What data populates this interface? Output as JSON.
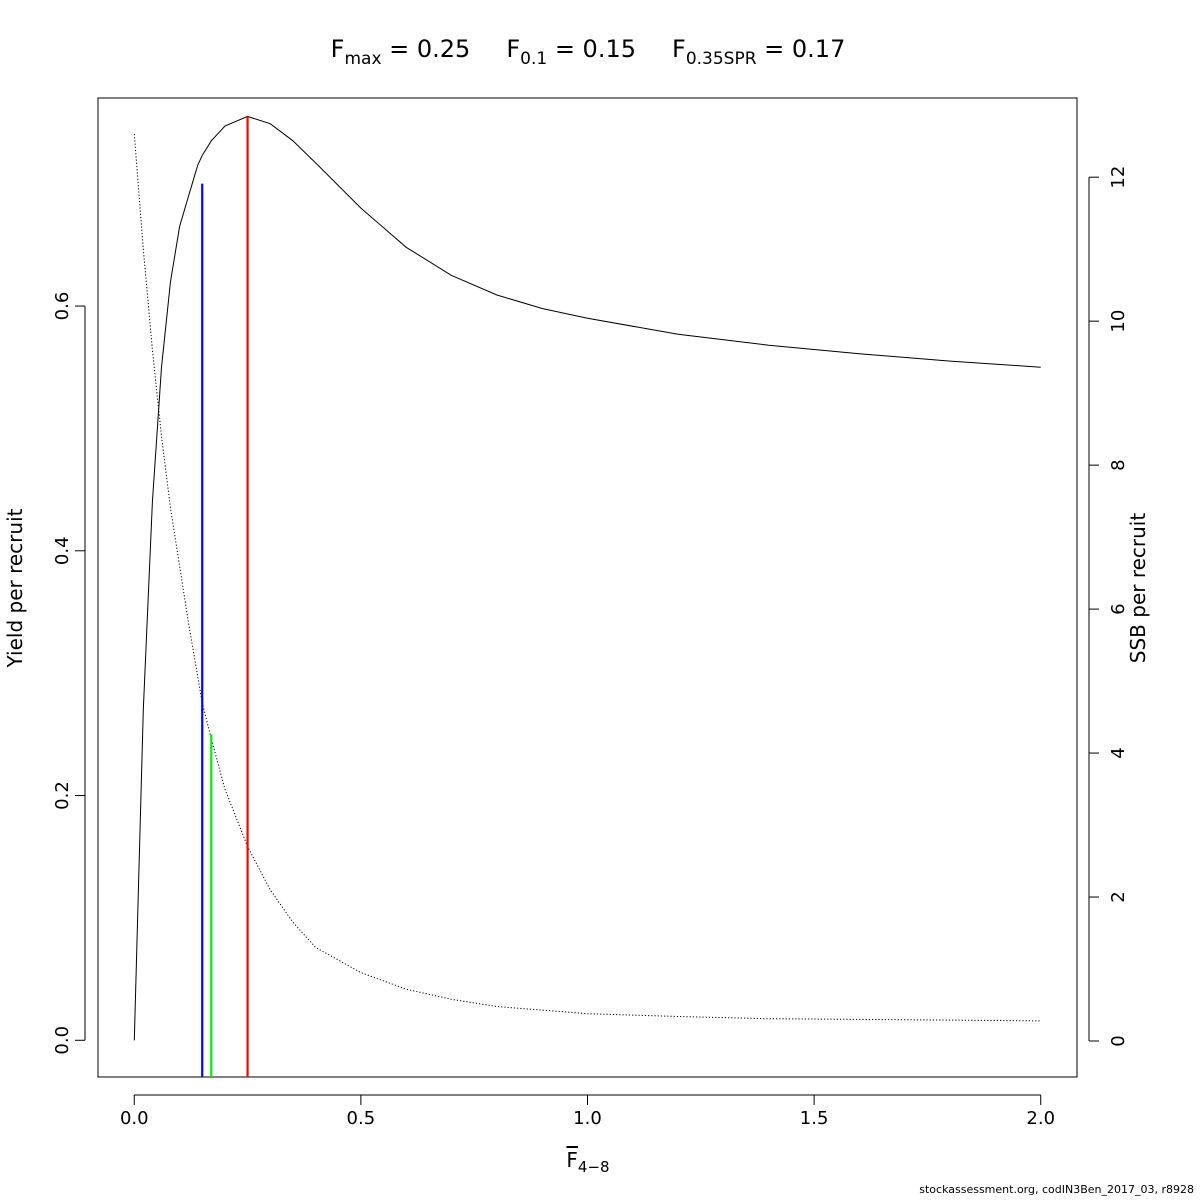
{
  "chart_data": {
    "type": "line",
    "title_parts": [
      {
        "base": "F",
        "sub": "max",
        "value": "= 0.25"
      },
      {
        "base": "F",
        "sub": "0.1",
        "value": "= 0.15"
      },
      {
        "base": "F",
        "sub": "0.35SPR",
        "value": "= 0.17"
      }
    ],
    "xlabel": {
      "base": "F",
      "sub": "4−8",
      "overline": true
    },
    "ylabel_left": "Yield per recruit",
    "ylabel_right": "SSB per recruit",
    "xlim": [
      -0.08,
      2.08
    ],
    "ylim_left": [
      -0.03,
      0.77
    ],
    "ylim_right": [
      -0.5,
      13.1
    ],
    "x_ticks": [
      0.0,
      0.5,
      1.0,
      1.5,
      2.0
    ],
    "x_tick_labels": [
      "0.0",
      "0.5",
      "1.0",
      "1.5",
      "2.0"
    ],
    "y_left_ticks": [
      0.0,
      0.2,
      0.4,
      0.6
    ],
    "y_left_tick_labels": [
      "0.0",
      "0.2",
      "0.4",
      "0.6"
    ],
    "y_right_ticks": [
      0,
      2,
      4,
      6,
      8,
      10,
      12
    ],
    "y_right_tick_labels": [
      "0",
      "2",
      "4",
      "6",
      "8",
      "10",
      "12"
    ],
    "grid": false,
    "series": [
      {
        "axis": "left",
        "style": "solid",
        "color": "#000000",
        "x": [
          0.0,
          0.02,
          0.04,
          0.06,
          0.08,
          0.1,
          0.12,
          0.14,
          0.15,
          0.17,
          0.2,
          0.25,
          0.3,
          0.35,
          0.4,
          0.5,
          0.6,
          0.7,
          0.8,
          0.9,
          1.0,
          1.2,
          1.4,
          1.6,
          1.8,
          2.0
        ],
        "y": [
          0.0,
          0.27,
          0.44,
          0.55,
          0.62,
          0.665,
          0.69,
          0.715,
          0.723,
          0.735,
          0.747,
          0.755,
          0.749,
          0.735,
          0.717,
          0.68,
          0.648,
          0.625,
          0.609,
          0.598,
          0.59,
          0.577,
          0.568,
          0.561,
          0.555,
          0.55
        ]
      },
      {
        "axis": "right",
        "style": "dotted",
        "color": "#000000",
        "x": [
          0.0,
          0.02,
          0.04,
          0.06,
          0.08,
          0.1,
          0.12,
          0.15,
          0.17,
          0.2,
          0.25,
          0.3,
          0.35,
          0.4,
          0.5,
          0.6,
          0.7,
          0.8,
          1.0,
          1.2,
          1.4,
          1.6,
          1.8,
          2.0
        ],
        "y": [
          12.6,
          11.0,
          9.6,
          8.4,
          7.4,
          6.6,
          5.8,
          4.7,
          4.2,
          3.5,
          2.7,
          2.1,
          1.65,
          1.3,
          0.95,
          0.72,
          0.58,
          0.48,
          0.38,
          0.34,
          0.31,
          0.3,
          0.29,
          0.28
        ]
      }
    ],
    "reference_lines": [
      {
        "x": 0.15,
        "y_top": 0.7,
        "axis": "left",
        "color": "#0000ff"
      },
      {
        "x": 0.17,
        "y_top": 0.25,
        "axis": "left",
        "color": "#00ee00"
      },
      {
        "x": 0.25,
        "y_top": 0.755,
        "axis": "left",
        "color": "#ff0000"
      }
    ]
  },
  "footer": "stockassessment.org, codIN3Ben_2017_03, r8928"
}
